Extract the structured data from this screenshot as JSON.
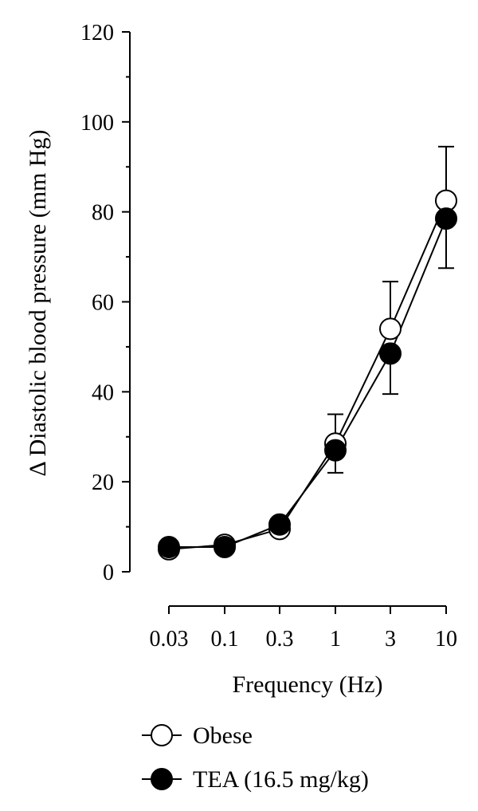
{
  "chart_data": {
    "type": "line",
    "xlabel": "Frequency (Hz)",
    "ylabel": "Δ Diastolic blood pressure (mm Hg)",
    "x_tick_labels": [
      "0.03",
      "0.1",
      "0.3",
      "1",
      "3",
      "10"
    ],
    "x": [
      0.03,
      0.1,
      0.3,
      1,
      3,
      10
    ],
    "x_scale": "log",
    "ylim": [
      0,
      120
    ],
    "y_ticks": [
      0,
      20,
      40,
      60,
      80,
      100,
      120
    ],
    "y_tick_labels": [
      "0",
      "20",
      "40",
      "60",
      "80",
      "100",
      "120"
    ],
    "grid": false,
    "legend_position": "bottom",
    "series": [
      {
        "name": "Obese",
        "marker": "open-circle",
        "color": "#000000",
        "fill": "#ffffff",
        "values": [
          5,
          6,
          9.5,
          28.5,
          54,
          82.5
        ],
        "error_upper": [
          null,
          null,
          null,
          35,
          64.5,
          94.5
        ],
        "error_lower": [
          null,
          null,
          null,
          null,
          null,
          null
        ]
      },
      {
        "name": "TEA (16.5 mg/kg)",
        "marker": "filled-circle",
        "color": "#000000",
        "fill": "#000000",
        "values": [
          5.5,
          5.5,
          10.5,
          27,
          48.5,
          78.5
        ],
        "error_upper": [
          null,
          null,
          null,
          null,
          null,
          null
        ],
        "error_lower": [
          null,
          null,
          null,
          22,
          39.5,
          67.5
        ]
      }
    ]
  }
}
